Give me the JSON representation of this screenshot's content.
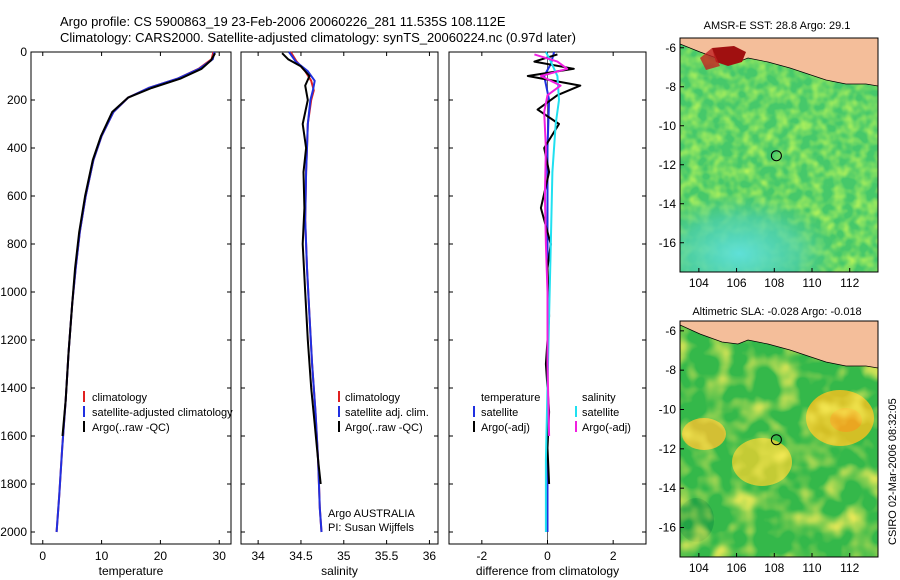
{
  "header": {
    "line1": "Argo profile: CS 5900863_19 23-Feb-2006 20060226_281 11.535S 108.112E",
    "line2": "Climatology: CARS2000. Satellite-adjusted climatology: synTS_20060224.nc (0.97d later)"
  },
  "footer": {
    "stamp": "CSIRO 02-Mar-2006 08:32:05"
  },
  "chart_data": [
    {
      "id": "temperature",
      "type": "line",
      "xlabel": "temperature",
      "xlim": [
        -2,
        32
      ],
      "xticks": [
        0,
        10,
        20,
        30
      ],
      "ylim": [
        2050,
        0
      ],
      "yticks": [
        0,
        200,
        400,
        600,
        800,
        1000,
        1200,
        1400,
        1600,
        1800,
        2000
      ],
      "legend": {
        "position": "lower-center",
        "entries": [
          "climatology",
          "satellite-adjusted climatology",
          "Argo(..raw -QC)"
        ]
      },
      "series": [
        {
          "name": "climatology",
          "color": "#e02020",
          "x": [
            29.0,
            28.7,
            26.5,
            23.0,
            18.0,
            14.5,
            12.0,
            10.0,
            8.6,
            7.3,
            6.3,
            5.6,
            5.0,
            4.4,
            3.9,
            3.3,
            2.8,
            2.35
          ],
          "y": [
            0,
            30,
            70,
            110,
            150,
            190,
            250,
            350,
            450,
            600,
            750,
            900,
            1050,
            1250,
            1450,
            1650,
            1850,
            2000
          ]
        },
        {
          "name": "satellite-adjusted climatology",
          "color": "#2030e0",
          "x": [
            29.2,
            28.9,
            26.6,
            23.0,
            18.0,
            14.5,
            12.0,
            10.0,
            8.6,
            7.3,
            6.3,
            5.6,
            5.0,
            4.4,
            3.9,
            3.3,
            2.8,
            2.35
          ],
          "y": [
            0,
            30,
            70,
            110,
            150,
            190,
            250,
            350,
            450,
            600,
            750,
            900,
            1050,
            1250,
            1450,
            1650,
            1850,
            2000
          ]
        },
        {
          "name": "Argo(..raw -QC)",
          "color": "#000000",
          "x": [
            29.3,
            28.6,
            27.0,
            23.5,
            18.5,
            14.5,
            11.8,
            9.9,
            8.5,
            7.2,
            6.2,
            5.5,
            5.0,
            4.4,
            3.9,
            3.35
          ],
          "y": [
            5,
            35,
            70,
            110,
            150,
            190,
            250,
            350,
            450,
            600,
            750,
            900,
            1050,
            1250,
            1450,
            1600
          ]
        }
      ],
      "annotations": []
    },
    {
      "id": "salinity",
      "type": "line",
      "xlabel": "salinity",
      "xlim": [
        33.8,
        36.1
      ],
      "xticks": [
        34,
        34.5,
        35,
        35.5,
        36
      ],
      "ylim": [
        2050,
        0
      ],
      "legend": {
        "position": "lower-center",
        "entries": [
          "climatology",
          "satellite adj. clim.",
          "Argo(..raw -QC)"
        ]
      },
      "series": [
        {
          "name": "climatology",
          "color": "#e02020",
          "x": [
            34.38,
            34.45,
            34.55,
            34.62,
            34.65,
            34.62,
            34.58,
            34.57,
            34.56,
            34.55,
            34.57,
            34.6,
            34.63,
            34.67,
            34.7,
            34.72,
            34.74
          ],
          "y": [
            0,
            40,
            80,
            120,
            160,
            200,
            300,
            400,
            500,
            700,
            900,
            1100,
            1300,
            1500,
            1700,
            1900,
            2000
          ]
        },
        {
          "name": "satellite adj. clim.",
          "color": "#2030e0",
          "x": [
            34.36,
            34.44,
            34.58,
            34.66,
            34.64,
            34.61,
            34.58,
            34.57,
            34.56,
            34.55,
            34.57,
            34.6,
            34.63,
            34.67,
            34.7,
            34.72,
            34.74
          ],
          "y": [
            0,
            40,
            80,
            120,
            160,
            200,
            300,
            400,
            500,
            700,
            900,
            1100,
            1300,
            1500,
            1700,
            1900,
            2000
          ]
        },
        {
          "name": "Argo(..raw -QC)",
          "color": "#000000",
          "x": [
            34.28,
            34.35,
            34.5,
            34.6,
            34.55,
            34.58,
            34.52,
            34.56,
            34.53,
            34.54,
            34.52,
            34.55,
            34.58,
            34.62,
            34.66,
            34.7,
            34.73
          ],
          "y": [
            5,
            30,
            60,
            100,
            140,
            200,
            300,
            400,
            500,
            650,
            800,
            1000,
            1200,
            1400,
            1550,
            1700,
            1800
          ]
        }
      ],
      "annotations": [
        "Argo AUSTRALIA",
        "PI: Susan Wijffels"
      ]
    },
    {
      "id": "difference",
      "type": "line",
      "xlabel": "difference from climatology",
      "xlim": [
        -3.0,
        3.0
      ],
      "xticks": [
        -2,
        0,
        2
      ],
      "ylim": [
        2050,
        0
      ],
      "legend": {
        "position": "lower-center",
        "entries": [
          "temperature",
          "satellite",
          "Argo(-adj)",
          "salinity",
          "satellite",
          "Argo(-adj)"
        ]
      },
      "series": [
        {
          "name": "temperature satellite",
          "color": "#2030e0",
          "x": [
            0.2,
            0.1,
            -0.1,
            0.05,
            0,
            0,
            0,
            0,
            0
          ],
          "y": [
            0,
            50,
            100,
            200,
            400,
            800,
            1200,
            1600,
            2000
          ]
        },
        {
          "name": "temperature Argo(-adj)",
          "color": "#000000",
          "x": [
            0.3,
            -0.4,
            0.8,
            -0.6,
            1.0,
            0.3,
            -0.3,
            0.35,
            -0.1,
            0.05,
            -0.2,
            0.1,
            0.0,
            0.05,
            -0.05,
            0.05,
            0.0,
            0.05
          ],
          "y": [
            10,
            40,
            70,
            100,
            140,
            180,
            240,
            300,
            400,
            500,
            650,
            800,
            900,
            1100,
            1300,
            1500,
            1650,
            1800
          ]
        },
        {
          "name": "salinity satellite",
          "color": "#20e0f0",
          "x": [
            -0.05,
            0.1,
            0.3,
            0.35,
            0.25,
            0.15,
            0.1,
            0.05,
            0.0,
            -0.05,
            -0.05
          ],
          "y": [
            0,
            40,
            100,
            200,
            300,
            500,
            800,
            1100,
            1400,
            1700,
            2000
          ]
        },
        {
          "name": "salinity Argo(-adj)",
          "color": "#f020e0",
          "x": [
            -0.4,
            0.3,
            0.6,
            -0.2,
            0.4,
            0.0,
            -0.1,
            -0.05,
            -0.08,
            -0.05,
            0.0,
            0.0,
            0.05
          ],
          "y": [
            10,
            40,
            70,
            100,
            140,
            180,
            250,
            400,
            600,
            800,
            1000,
            1300,
            1600
          ]
        }
      ],
      "annotations": []
    },
    {
      "id": "sst_map",
      "type": "heatmap",
      "title": "AMSR-E SST: 28.8 Argo: 29.1",
      "xlim": [
        103,
        113.5
      ],
      "ylim": [
        -17.5,
        -5.5
      ],
      "xticks": [
        104,
        106,
        108,
        110,
        112
      ],
      "yticks": [
        -6,
        -8,
        -10,
        -12,
        -14,
        -16
      ],
      "profile_location": {
        "lon": 108.112,
        "lat": -11.535
      }
    },
    {
      "id": "sla_map",
      "type": "heatmap",
      "title": "Altimetric SLA: -0.028 Argo: -0.018",
      "xlim": [
        103,
        113.5
      ],
      "ylim": [
        -17.5,
        -5.5
      ],
      "xticks": [
        104,
        106,
        108,
        110,
        112
      ],
      "yticks": [
        -6,
        -8,
        -10,
        -12,
        -14,
        -16
      ],
      "profile_location": {
        "lon": 108.112,
        "lat": -11.535
      }
    }
  ]
}
